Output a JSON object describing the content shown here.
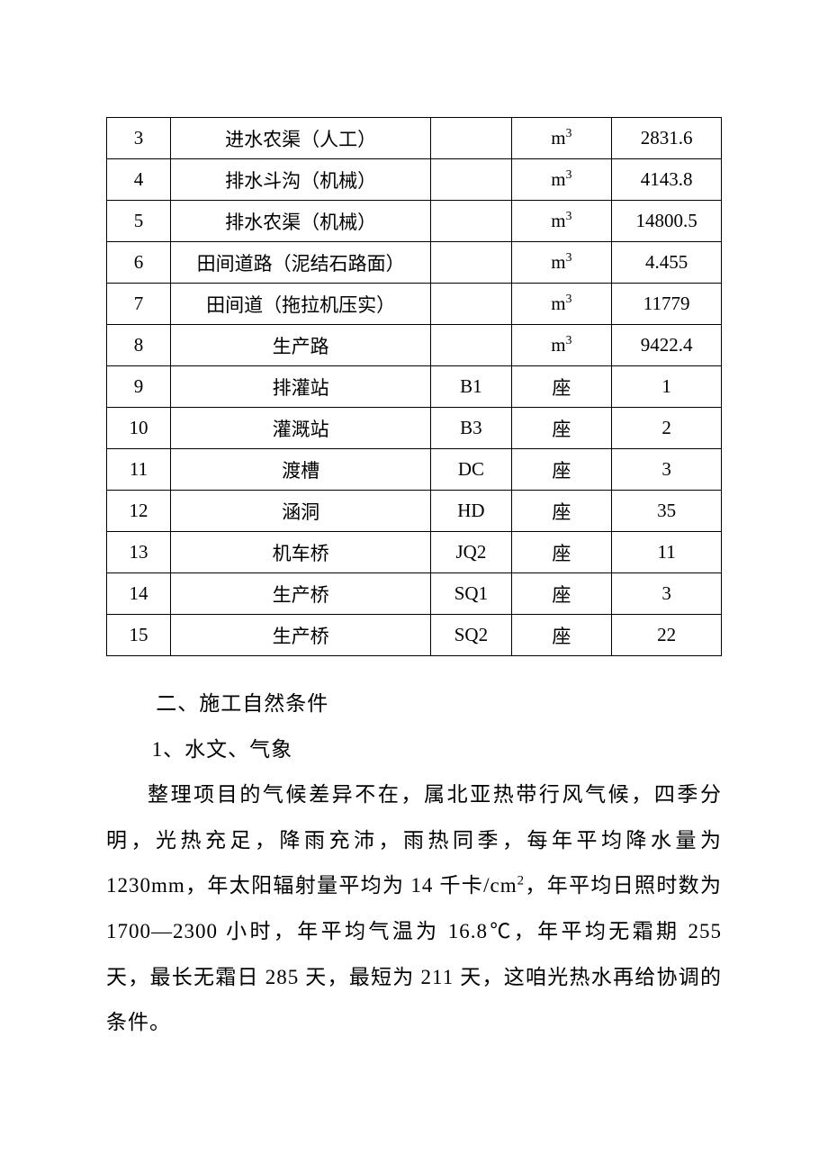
{
  "table": {
    "rows": [
      {
        "n": "3",
        "name": "进水农渠（人工）",
        "code": "",
        "unit_base": "m",
        "unit_sup": "3",
        "val": "2831.6"
      },
      {
        "n": "4",
        "name": "排水斗沟（机械）",
        "code": "",
        "unit_base": "m",
        "unit_sup": "3",
        "val": "4143.8"
      },
      {
        "n": "5",
        "name": "排水农渠（机械）",
        "code": "",
        "unit_base": "m",
        "unit_sup": "3",
        "val": "14800.5"
      },
      {
        "n": "6",
        "name": "田间道路（泥结石路面）",
        "code": "",
        "unit_base": "m",
        "unit_sup": "3",
        "val": "4.455"
      },
      {
        "n": "7",
        "name": "田间道（拖拉机压实）",
        "code": "",
        "unit_base": "m",
        "unit_sup": "3",
        "val": "11779"
      },
      {
        "n": "8",
        "name": "生产路",
        "code": "",
        "unit_base": "m",
        "unit_sup": "3",
        "val": "9422.4"
      },
      {
        "n": "9",
        "name": "排灌站",
        "code": "B1",
        "unit_base": "座",
        "unit_sup": "",
        "val": "1"
      },
      {
        "n": "10",
        "name": "灌溉站",
        "code": "B3",
        "unit_base": "座",
        "unit_sup": "",
        "val": "2"
      },
      {
        "n": "11",
        "name": "渡槽",
        "code": "DC",
        "unit_base": "座",
        "unit_sup": "",
        "val": "3"
      },
      {
        "n": "12",
        "name": "涵洞",
        "code": "HD",
        "unit_base": "座",
        "unit_sup": "",
        "val": "35"
      },
      {
        "n": "13",
        "name": "机车桥",
        "code": "JQ2",
        "unit_base": "座",
        "unit_sup": "",
        "val": "11"
      },
      {
        "n": "14",
        "name": "生产桥",
        "code": "SQ1",
        "unit_base": "座",
        "unit_sup": "",
        "val": "3"
      },
      {
        "n": "15",
        "name": "生产桥",
        "code": "SQ2",
        "unit_base": "座",
        "unit_sup": "",
        "val": "22"
      }
    ]
  },
  "text": {
    "h1": "二、施工自然条件",
    "h2": "1、水文、气象",
    "para_before": "整理项目的气候差异不在，属北亚热带行风气候，四季分明，光热充足，降雨充沛，雨热同季，每年平均降水量为 1230mm，年太阳辐射量平均为 14 千卡/cm",
    "para_sup": "2",
    "para_after": "，年平均日照时数为 1700—2300 小时，年平均气温为 16.8℃，年平均无霜期 255 天，最长无霜日 285 天，最短为 211 天，这咱光热水再给协调的条件。"
  }
}
